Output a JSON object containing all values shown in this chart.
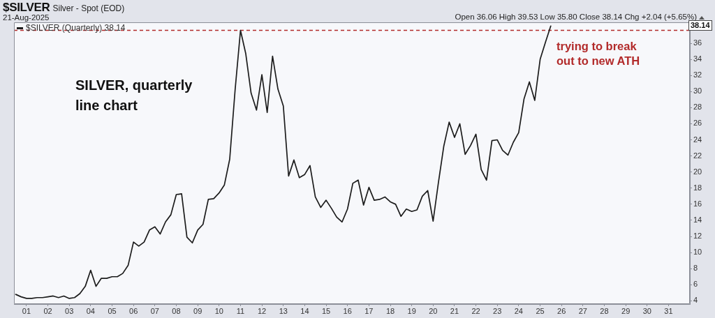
{
  "chart_data": {
    "type": "line",
    "title": "$SILVER",
    "subtitle": "Silver - Spot (EOD)",
    "annotations": [
      "21-Aug-2025",
      "Open 36.06 High 39.53 Low 35.80 Close 38.14 Chg +2.04 (+5.65%)",
      "SILVER, quarterly line chart",
      {
        "text": "38.14",
        "y": 38.14
      }
    ],
    "x": [
      "2000-07",
      "2000-10",
      "2001-01",
      "2001-04",
      "2001-07",
      "2001-10",
      "2002-01",
      "2002-04",
      "2002-07",
      "2002-10",
      "2003-01",
      "2003-04",
      "2003-07",
      "2003-10",
      "2004-01",
      "2004-04",
      "2004-07",
      "2004-10",
      "2005-01",
      "2005-04",
      "2005-07",
      "2005-10",
      "2006-01",
      "2006-04",
      "2006-07",
      "2006-10",
      "2007-01",
      "2007-04",
      "2007-07",
      "2007-10",
      "2008-01",
      "2008-04",
      "2008-07",
      "2008-10",
      "2009-01",
      "2009-04",
      "2009-07",
      "2009-10",
      "2010-01",
      "2010-04",
      "2010-07",
      "2010-10",
      "2011-01",
      "2011-04",
      "2011-07",
      "2011-10",
      "2012-01",
      "2012-04",
      "2012-07",
      "2012-10",
      "2013-01",
      "2013-04",
      "2013-07",
      "2013-10",
      "2014-01",
      "2014-04",
      "2014-07",
      "2014-10",
      "2015-01",
      "2015-04",
      "2015-07",
      "2015-10",
      "2016-01",
      "2016-04",
      "2016-07",
      "2016-10",
      "2017-01",
      "2017-04",
      "2017-07",
      "2017-10",
      "2018-01",
      "2018-04",
      "2018-07",
      "2018-10",
      "2019-01",
      "2019-04",
      "2019-07",
      "2019-10",
      "2020-01",
      "2020-04",
      "2020-07",
      "2020-10",
      "2021-01",
      "2021-04",
      "2021-07",
      "2021-10",
      "2022-01",
      "2022-04",
      "2022-07",
      "2022-10",
      "2023-01",
      "2023-04",
      "2023-07",
      "2023-10",
      "2024-01",
      "2024-04",
      "2024-07",
      "2024-10",
      "2025-01",
      "2025-04",
      "2025-07"
    ],
    "series": [
      {
        "name": "$SILVER (Quarterly) 38.14",
        "color": "#1c1c1c",
        "values": [
          4.8,
          4.5,
          4.3,
          4.3,
          4.4,
          4.4,
          4.5,
          4.6,
          4.4,
          4.6,
          4.3,
          4.4,
          4.9,
          5.8,
          7.8,
          5.8,
          6.8,
          6.8,
          7.0,
          7.0,
          7.4,
          8.4,
          11.3,
          10.8,
          11.3,
          12.8,
          13.2,
          12.3,
          13.8,
          14.7,
          17.2,
          17.3,
          11.9,
          11.2,
          12.8,
          13.5,
          16.6,
          16.7,
          17.4,
          18.4,
          21.6,
          30.2,
          37.6,
          34.7,
          29.8,
          27.7,
          32.1,
          27.4,
          34.4,
          30.3,
          28.2,
          19.5,
          21.5,
          19.3,
          19.7,
          20.8,
          16.9,
          15.6,
          16.5,
          15.5,
          14.4,
          13.8,
          15.4,
          18.6,
          19.0,
          15.9,
          18.1,
          16.5,
          16.6,
          16.9,
          16.3,
          16.0,
          14.5,
          15.4,
          15.1,
          15.3,
          17.0,
          17.7,
          13.9,
          18.7,
          23.2,
          26.2,
          24.3,
          26.0,
          22.2,
          23.3,
          24.7,
          20.3,
          19.0,
          23.9,
          24.0,
          22.7,
          22.1,
          23.7,
          24.9,
          29.1,
          31.2,
          28.9,
          34.0,
          36.1,
          38.14
        ]
      }
    ],
    "xlim": [
      "2000-06",
      "2031-12-31"
    ],
    "xticks": [
      {
        "value": "2001",
        "label": "01"
      },
      {
        "value": "2002",
        "label": "02"
      },
      {
        "value": "2003",
        "label": "03"
      },
      {
        "value": "2004",
        "label": "04"
      },
      {
        "value": "2005",
        "label": "05"
      },
      {
        "value": "2006",
        "label": "06"
      },
      {
        "value": "2007",
        "label": "07"
      },
      {
        "value": "2008",
        "label": "08"
      },
      {
        "value": "2009",
        "label": "09"
      },
      {
        "value": "2010",
        "label": "10"
      },
      {
        "value": "2011",
        "label": "11"
      },
      {
        "value": "2012",
        "label": "12"
      },
      {
        "value": "2013",
        "label": "13"
      },
      {
        "value": "2014",
        "label": "14"
      },
      {
        "value": "2015",
        "label": "15"
      },
      {
        "value": "2016",
        "label": "16"
      },
      {
        "value": "2017",
        "label": "17"
      },
      {
        "value": "2018",
        "label": "18"
      },
      {
        "value": "2019",
        "label": "19"
      },
      {
        "value": "2020",
        "label": "20"
      },
      {
        "value": "2021",
        "label": "21"
      },
      {
        "value": "2022",
        "label": "22"
      },
      {
        "value": "2023",
        "label": "23"
      },
      {
        "value": "2024",
        "label": "24"
      },
      {
        "value": "2025",
        "label": "25"
      },
      {
        "value": "2026",
        "label": "26"
      },
      {
        "value": "2027",
        "label": "27"
      },
      {
        "value": "2028",
        "label": "28"
      },
      {
        "value": "2029",
        "label": "29"
      },
      {
        "value": "2030",
        "label": "30"
      },
      {
        "value": "2031",
        "label": "31"
      }
    ],
    "ylim": [
      3.6,
      38.6
    ],
    "yticks": [
      4,
      6,
      8,
      10,
      12,
      14,
      16,
      18,
      20,
      22,
      24,
      26,
      28,
      30,
      32,
      34,
      36
    ],
    "ref_lines": [
      {
        "axis": "y",
        "value": 37.6,
        "label": "trying to break out to new ATH",
        "color": "#b22a2a",
        "line_style": "dashed"
      }
    ],
    "grid": false,
    "legend": "top left",
    "marker": "none"
  }
}
